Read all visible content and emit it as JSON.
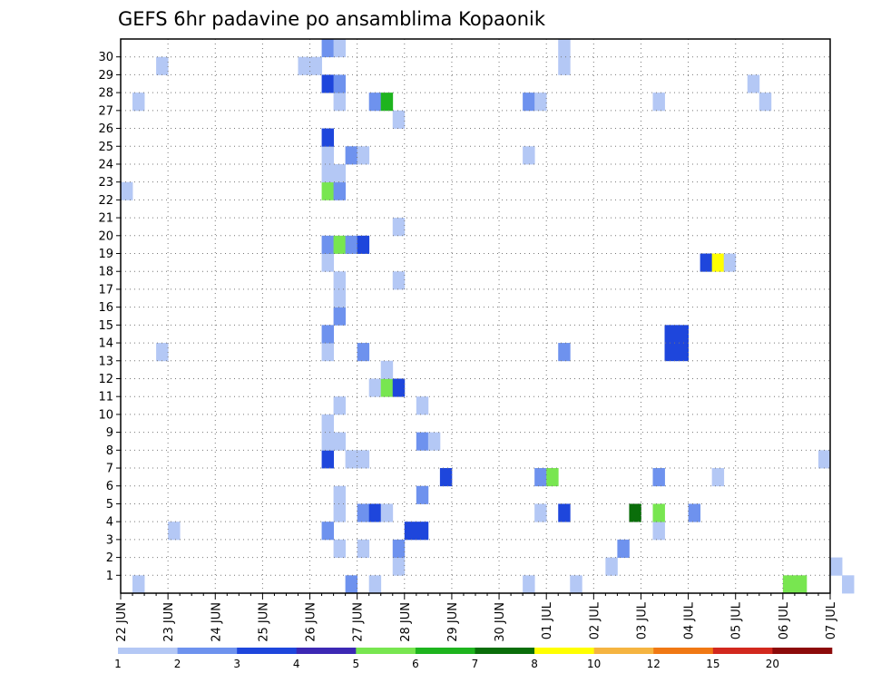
{
  "chart_data": {
    "type": "heatmap",
    "title": "GEFS 6hr padavine po ansamblima Kopaonik",
    "x_tick_labels": [
      "22 JUN",
      "23 JUN",
      "24 JUN",
      "25 JUN",
      "26 JUN",
      "27 JUN",
      "28 JUN",
      "29 JUN",
      "30 JUN",
      "01 JUL",
      "02 JUL",
      "03 JUL",
      "04 JUL",
      "05 JUL",
      "06 JUL",
      "07 JUL"
    ],
    "y_tick_labels": [
      "1",
      "2",
      "3",
      "4",
      "5",
      "6",
      "7",
      "8",
      "9",
      "10",
      "11",
      "12",
      "13",
      "14",
      "15",
      "16",
      "17",
      "18",
      "19",
      "20",
      "21",
      "22",
      "23",
      "24",
      "25",
      "26",
      "27",
      "28",
      "29",
      "30"
    ],
    "x_range_days": [
      0,
      15
    ],
    "steps_per_day": 4,
    "y_range": [
      0,
      30
    ],
    "grid": true,
    "colorbar": {
      "labels": [
        "1",
        "2",
        "3",
        "4",
        "5",
        "6",
        "7",
        "8",
        "10",
        "12",
        "15",
        "20"
      ],
      "colors": [
        "#b4c8f5",
        "#6e92ee",
        "#1e46dc",
        "#3c28b4",
        "#78e650",
        "#1eb41e",
        "#0a6e0a",
        "#ffff00",
        "#f5b441",
        "#f07814",
        "#d2281e",
        "#8c0a0a"
      ]
    },
    "cells": [
      {
        "t": 19,
        "m": 0,
        "c": 2
      },
      {
        "t": 21,
        "m": 0,
        "c": 1
      },
      {
        "t": 34,
        "m": 0,
        "c": 1
      },
      {
        "t": 38,
        "m": 0,
        "c": 1
      },
      {
        "t": 56,
        "m": 0,
        "c": 5
      },
      {
        "t": 57,
        "m": 0,
        "c": 5
      },
      {
        "t": 61,
        "m": 0,
        "c": 1
      },
      {
        "t": 67,
        "m": 0,
        "c": 1
      },
      {
        "t": 71,
        "m": 0,
        "c": 1
      },
      {
        "t": 94,
        "m": 0,
        "c": 3
      },
      {
        "t": 99,
        "m": 0,
        "c": 1
      },
      {
        "t": 110,
        "m": 0,
        "c": 1
      },
      {
        "t": 1,
        "m": 0,
        "c": 1
      },
      {
        "t": 23,
        "m": 1,
        "c": 1
      },
      {
        "t": 41,
        "m": 1,
        "c": 1
      },
      {
        "t": 60,
        "m": 1,
        "c": 1
      },
      {
        "t": 91,
        "m": 1,
        "c": 1
      },
      {
        "t": 112,
        "m": 1,
        "c": 1
      },
      {
        "t": 119,
        "m": 1,
        "c": 2
      },
      {
        "t": 120,
        "m": 1,
        "c": 1
      },
      {
        "t": 121,
        "m": 1,
        "c": 6
      },
      {
        "t": 78,
        "m": 1,
        "c": 4
      },
      {
        "t": 79,
        "m": 1,
        "c": 5
      },
      {
        "t": 111,
        "m": 1,
        "c": 1
      },
      {
        "t": 18,
        "m": 2,
        "c": 1
      },
      {
        "t": 20,
        "m": 2,
        "c": 1
      },
      {
        "t": 23,
        "m": 2,
        "c": 2
      },
      {
        "t": 42,
        "m": 2,
        "c": 2
      },
      {
        "t": 98,
        "m": 2,
        "c": 2
      },
      {
        "t": 100,
        "m": 2,
        "c": 5
      },
      {
        "t": 106,
        "m": 2,
        "c": 1
      },
      {
        "t": 107,
        "m": 2,
        "c": 1
      },
      {
        "t": 4,
        "m": 3,
        "c": 1
      },
      {
        "t": 17,
        "m": 3,
        "c": 2
      },
      {
        "t": 24,
        "m": 3,
        "c": 3
      },
      {
        "t": 25,
        "m": 3,
        "c": 3
      },
      {
        "t": 45,
        "m": 3,
        "c": 1
      },
      {
        "t": 71,
        "m": 3,
        "c": 2
      },
      {
        "t": 72,
        "m": 3,
        "c": 2
      },
      {
        "t": 93,
        "m": 3,
        "c": 2
      },
      {
        "t": 94,
        "m": 3,
        "c": 3
      },
      {
        "t": 111,
        "m": 3,
        "c": 7
      },
      {
        "t": 18,
        "m": 4,
        "c": 1
      },
      {
        "t": 20,
        "m": 4,
        "c": 2
      },
      {
        "t": 21,
        "m": 4,
        "c": 3
      },
      {
        "t": 22,
        "m": 4,
        "c": 1
      },
      {
        "t": 35,
        "m": 4,
        "c": 1
      },
      {
        "t": 37,
        "m": 4,
        "c": 3
      },
      {
        "t": 43,
        "m": 4,
        "c": 7
      },
      {
        "t": 45,
        "m": 4,
        "c": 5
      },
      {
        "t": 48,
        "m": 4,
        "c": 2
      },
      {
        "t": 78,
        "m": 4,
        "c": 1
      },
      {
        "t": 18,
        "m": 5,
        "c": 1
      },
      {
        "t": 25,
        "m": 5,
        "c": 2
      },
      {
        "t": 27,
        "m": 6,
        "c": 3
      },
      {
        "t": 35,
        "m": 6,
        "c": 2
      },
      {
        "t": 36,
        "m": 6,
        "c": 5
      },
      {
        "t": 45,
        "m": 6,
        "c": 2
      },
      {
        "t": 50,
        "m": 6,
        "c": 1
      },
      {
        "t": 74,
        "m": 6,
        "c": 1
      },
      {
        "t": 91,
        "m": 6,
        "c": 2
      },
      {
        "t": 92,
        "m": 6,
        "c": 3
      },
      {
        "t": 17,
        "m": 7,
        "c": 3
      },
      {
        "t": 19,
        "m": 7,
        "c": 1
      },
      {
        "t": 20,
        "m": 7,
        "c": 1
      },
      {
        "t": 59,
        "m": 7,
        "c": 1
      },
      {
        "t": 87,
        "m": 7,
        "c": 3
      },
      {
        "t": 88,
        "m": 7,
        "c": 5
      },
      {
        "t": 90,
        "m": 7,
        "c": 1
      },
      {
        "t": 92,
        "m": 7,
        "c": 5
      },
      {
        "t": 93,
        "m": 7,
        "c": 2
      },
      {
        "t": 94,
        "m": 7,
        "c": 1
      },
      {
        "t": 102,
        "m": 7,
        "c": 2
      },
      {
        "t": 106,
        "m": 7,
        "c": 3
      },
      {
        "t": 111,
        "m": 7,
        "c": 1
      },
      {
        "t": 112,
        "m": 7,
        "c": 3
      },
      {
        "t": 17,
        "m": 8,
        "c": 1
      },
      {
        "t": 18,
        "m": 8,
        "c": 1
      },
      {
        "t": 25,
        "m": 8,
        "c": 2
      },
      {
        "t": 26,
        "m": 8,
        "c": 1
      },
      {
        "t": 17,
        "m": 9,
        "c": 1
      },
      {
        "t": 71,
        "m": 9,
        "c": 3
      },
      {
        "t": 72,
        "m": 9,
        "c": 2
      },
      {
        "t": 75,
        "m": 9,
        "c": 2
      },
      {
        "t": 76,
        "m": 9,
        "c": 3
      },
      {
        "t": 18,
        "m": 10,
        "c": 1
      },
      {
        "t": 25,
        "m": 10,
        "c": 1
      },
      {
        "t": 69,
        "m": 10,
        "c": 1
      },
      {
        "t": 85,
        "m": 10,
        "c": 1
      },
      {
        "t": 89,
        "m": 10,
        "c": 1
      },
      {
        "t": 93,
        "m": 10,
        "c": 1
      },
      {
        "t": 101,
        "m": 10,
        "c": 5
      },
      {
        "t": 112,
        "m": 10,
        "c": 3
      },
      {
        "t": 21,
        "m": 11,
        "c": 1
      },
      {
        "t": 22,
        "m": 11,
        "c": 5
      },
      {
        "t": 23,
        "m": 11,
        "c": 3
      },
      {
        "t": 101,
        "m": 11,
        "c": 6
      },
      {
        "t": 22,
        "m": 12,
        "c": 1
      },
      {
        "t": 3,
        "m": 13,
        "c": 1
      },
      {
        "t": 17,
        "m": 13,
        "c": 1
      },
      {
        "t": 20,
        "m": 13,
        "c": 2
      },
      {
        "t": 37,
        "m": 13,
        "c": 2
      },
      {
        "t": 46,
        "m": 13,
        "c": 3
      },
      {
        "t": 47,
        "m": 13,
        "c": 3
      },
      {
        "t": 17,
        "m": 14,
        "c": 2
      },
      {
        "t": 46,
        "m": 14,
        "c": 3
      },
      {
        "t": 47,
        "m": 14,
        "c": 3
      },
      {
        "t": 18,
        "m": 15,
        "c": 2
      },
      {
        "t": 101,
        "m": 15,
        "c": 3
      },
      {
        "t": 109,
        "m": 15,
        "c": 3
      },
      {
        "t": 110,
        "m": 15,
        "c": 6
      },
      {
        "t": 111,
        "m": 15,
        "c": 6
      },
      {
        "t": 18,
        "m": 16,
        "c": 1
      },
      {
        "t": 106,
        "m": 16,
        "c": 1
      },
      {
        "t": 107,
        "m": 16,
        "c": 1
      },
      {
        "t": 110,
        "m": 16,
        "c": 5
      },
      {
        "t": 18,
        "m": 17,
        "c": 1
      },
      {
        "t": 23,
        "m": 17,
        "c": 1
      },
      {
        "t": 71,
        "m": 17,
        "c": 1
      },
      {
        "t": 93,
        "m": 17,
        "c": 1
      },
      {
        "t": 99,
        "m": 17,
        "c": 1
      },
      {
        "t": 110,
        "m": 17,
        "c": 5
      },
      {
        "t": 17,
        "m": 18,
        "c": 1
      },
      {
        "t": 49,
        "m": 18,
        "c": 3
      },
      {
        "t": 50,
        "m": 18,
        "c": 8
      },
      {
        "t": 51,
        "m": 18,
        "c": 1
      },
      {
        "t": 71,
        "m": 18,
        "c": 2
      },
      {
        "t": 72,
        "m": 18,
        "c": 3
      },
      {
        "t": 93,
        "m": 18,
        "c": 1
      },
      {
        "t": 94,
        "m": 18,
        "c": 6
      },
      {
        "t": 104,
        "m": 18,
        "c": 1
      },
      {
        "t": 105,
        "m": 18,
        "c": 3
      },
      {
        "t": 17,
        "m": 19,
        "c": 2
      },
      {
        "t": 18,
        "m": 19,
        "c": 5
      },
      {
        "t": 19,
        "m": 19,
        "c": 2
      },
      {
        "t": 20,
        "m": 19,
        "c": 3
      },
      {
        "t": 73,
        "m": 19,
        "c": 2
      },
      {
        "t": 74,
        "m": 19,
        "c": 1
      },
      {
        "t": 85,
        "m": 19,
        "c": 1
      },
      {
        "t": 86,
        "m": 19,
        "c": 2
      },
      {
        "t": 87,
        "m": 19,
        "c": 2
      },
      {
        "t": 88,
        "m": 19,
        "c": 2
      },
      {
        "t": 89,
        "m": 19,
        "c": 7
      },
      {
        "t": 90,
        "m": 19,
        "c": 6
      },
      {
        "t": 91,
        "m": 19,
        "c": 1
      },
      {
        "t": 23,
        "m": 20,
        "c": 1
      },
      {
        "t": 90,
        "m": 20,
        "c": 6
      },
      {
        "t": 91,
        "m": 20,
        "c": 1
      },
      {
        "t": 107,
        "m": 20,
        "c": 2
      },
      {
        "t": 112,
        "m": 21,
        "c": 1
      },
      {
        "t": 0,
        "m": 22,
        "c": 1
      },
      {
        "t": 17,
        "m": 22,
        "c": 5
      },
      {
        "t": 18,
        "m": 22,
        "c": 2
      },
      {
        "t": 107,
        "m": 22,
        "c": 3
      },
      {
        "t": 17,
        "m": 23,
        "c": 1
      },
      {
        "t": 18,
        "m": 23,
        "c": 1
      },
      {
        "t": 92,
        "m": 23,
        "c": 5
      },
      {
        "t": 17,
        "m": 24,
        "c": 1
      },
      {
        "t": 19,
        "m": 24,
        "c": 2
      },
      {
        "t": 20,
        "m": 24,
        "c": 1
      },
      {
        "t": 34,
        "m": 24,
        "c": 1
      },
      {
        "t": 73,
        "m": 24,
        "c": 5
      },
      {
        "t": 74,
        "m": 24,
        "c": 6
      },
      {
        "t": 75,
        "m": 24,
        "c": 7
      },
      {
        "t": 76,
        "m": 24,
        "c": 8
      },
      {
        "t": 77,
        "m": 24,
        "c": 1
      },
      {
        "t": 78,
        "m": 24,
        "c": 1
      },
      {
        "t": 79,
        "m": 24,
        "c": 6
      },
      {
        "t": 80,
        "m": 24,
        "c": 1
      },
      {
        "t": 81,
        "m": 24,
        "c": 1
      },
      {
        "t": 82,
        "m": 24,
        "c": 1
      },
      {
        "t": 84,
        "m": 24,
        "c": 5
      },
      {
        "t": 86,
        "m": 24,
        "c": 1
      },
      {
        "t": 87,
        "m": 24,
        "c": 1
      },
      {
        "t": 89,
        "m": 24,
        "c": 6
      },
      {
        "t": 91,
        "m": 24,
        "c": 1
      },
      {
        "t": 99,
        "m": 24,
        "c": 5
      },
      {
        "t": 100,
        "m": 24,
        "c": 7
      },
      {
        "t": 106,
        "m": 24,
        "c": 3
      },
      {
        "t": 107,
        "m": 24,
        "c": 1
      },
      {
        "t": 17,
        "m": 25,
        "c": 3
      },
      {
        "t": 69,
        "m": 25,
        "c": 1
      },
      {
        "t": 70,
        "m": 25,
        "c": 1
      },
      {
        "t": 91,
        "m": 25,
        "c": 1
      },
      {
        "t": 105,
        "m": 25,
        "c": 1
      },
      {
        "t": 106,
        "m": 25,
        "c": 1
      },
      {
        "t": 23,
        "m": 26,
        "c": 1
      },
      {
        "t": 77,
        "m": 26,
        "c": 1
      },
      {
        "t": 89,
        "m": 26,
        "c": 3
      },
      {
        "t": 98,
        "m": 26,
        "c": 8
      },
      {
        "t": 106,
        "m": 26,
        "c": 3
      },
      {
        "t": 107,
        "m": 26,
        "c": 1
      },
      {
        "t": 1,
        "m": 27,
        "c": 1
      },
      {
        "t": 18,
        "m": 27,
        "c": 1
      },
      {
        "t": 21,
        "m": 27,
        "c": 2
      },
      {
        "t": 22,
        "m": 27,
        "c": 6
      },
      {
        "t": 34,
        "m": 27,
        "c": 2
      },
      {
        "t": 35,
        "m": 27,
        "c": 1
      },
      {
        "t": 45,
        "m": 27,
        "c": 1
      },
      {
        "t": 54,
        "m": 27,
        "c": 1
      },
      {
        "t": 77,
        "m": 27,
        "c": 1
      },
      {
        "t": 78,
        "m": 27,
        "c": 1
      },
      {
        "t": 82,
        "m": 27,
        "c": 3
      },
      {
        "t": 83,
        "m": 27,
        "c": 1
      },
      {
        "t": 84,
        "m": 27,
        "c": 1
      },
      {
        "t": 87,
        "m": 27,
        "c": 1
      },
      {
        "t": 17,
        "m": 28,
        "c": 3
      },
      {
        "t": 18,
        "m": 28,
        "c": 2
      },
      {
        "t": 53,
        "m": 28,
        "c": 1
      },
      {
        "t": 69,
        "m": 28,
        "c": 1
      },
      {
        "t": 99,
        "m": 28,
        "c": 6
      },
      {
        "t": 100,
        "m": 28,
        "c": 3
      },
      {
        "t": 101,
        "m": 28,
        "c": 8
      },
      {
        "t": 103,
        "m": 28,
        "c": 1
      },
      {
        "t": 106,
        "m": 28,
        "c": 2
      },
      {
        "t": 107,
        "m": 28,
        "c": 2
      },
      {
        "t": 108,
        "m": 28,
        "c": 1
      },
      {
        "t": 109,
        "m": 28,
        "c": 1
      },
      {
        "t": 3,
        "m": 29,
        "c": 1
      },
      {
        "t": 15,
        "m": 29,
        "c": 1
      },
      {
        "t": 16,
        "m": 29,
        "c": 1
      },
      {
        "t": 37,
        "m": 29,
        "c": 1
      },
      {
        "t": 69,
        "m": 29,
        "c": 1
      },
      {
        "t": 77,
        "m": 29,
        "c": 9
      },
      {
        "t": 94,
        "m": 29,
        "c": 2
      },
      {
        "t": 95,
        "m": 29,
        "c": 1
      },
      {
        "t": 99,
        "m": 29,
        "c": 1
      },
      {
        "t": 101,
        "m": 29,
        "c": 3
      },
      {
        "t": 102,
        "m": 29,
        "c": 1
      },
      {
        "t": 104,
        "m": 29,
        "c": 1
      },
      {
        "t": 105,
        "m": 29,
        "c": 9
      },
      {
        "t": 106,
        "m": 29,
        "c": 1
      },
      {
        "t": 108,
        "m": 29,
        "c": 2
      },
      {
        "t": 109,
        "m": 29,
        "c": 1
      },
      {
        "t": 110,
        "m": 29,
        "c": 7
      },
      {
        "t": 17,
        "m": 30,
        "c": 2
      },
      {
        "t": 18,
        "m": 30,
        "c": 1
      },
      {
        "t": 37,
        "m": 30,
        "c": 1
      },
      {
        "t": 65,
        "m": 30,
        "c": 1
      },
      {
        "t": 66,
        "m": 30,
        "c": 5
      },
      {
        "t": 70,
        "m": 30,
        "c": 5
      },
      {
        "t": 74,
        "m": 30,
        "c": 1
      },
      {
        "t": 101,
        "m": 30,
        "c": 1
      },
      {
        "t": 106,
        "m": 30,
        "c": 1
      }
    ]
  }
}
